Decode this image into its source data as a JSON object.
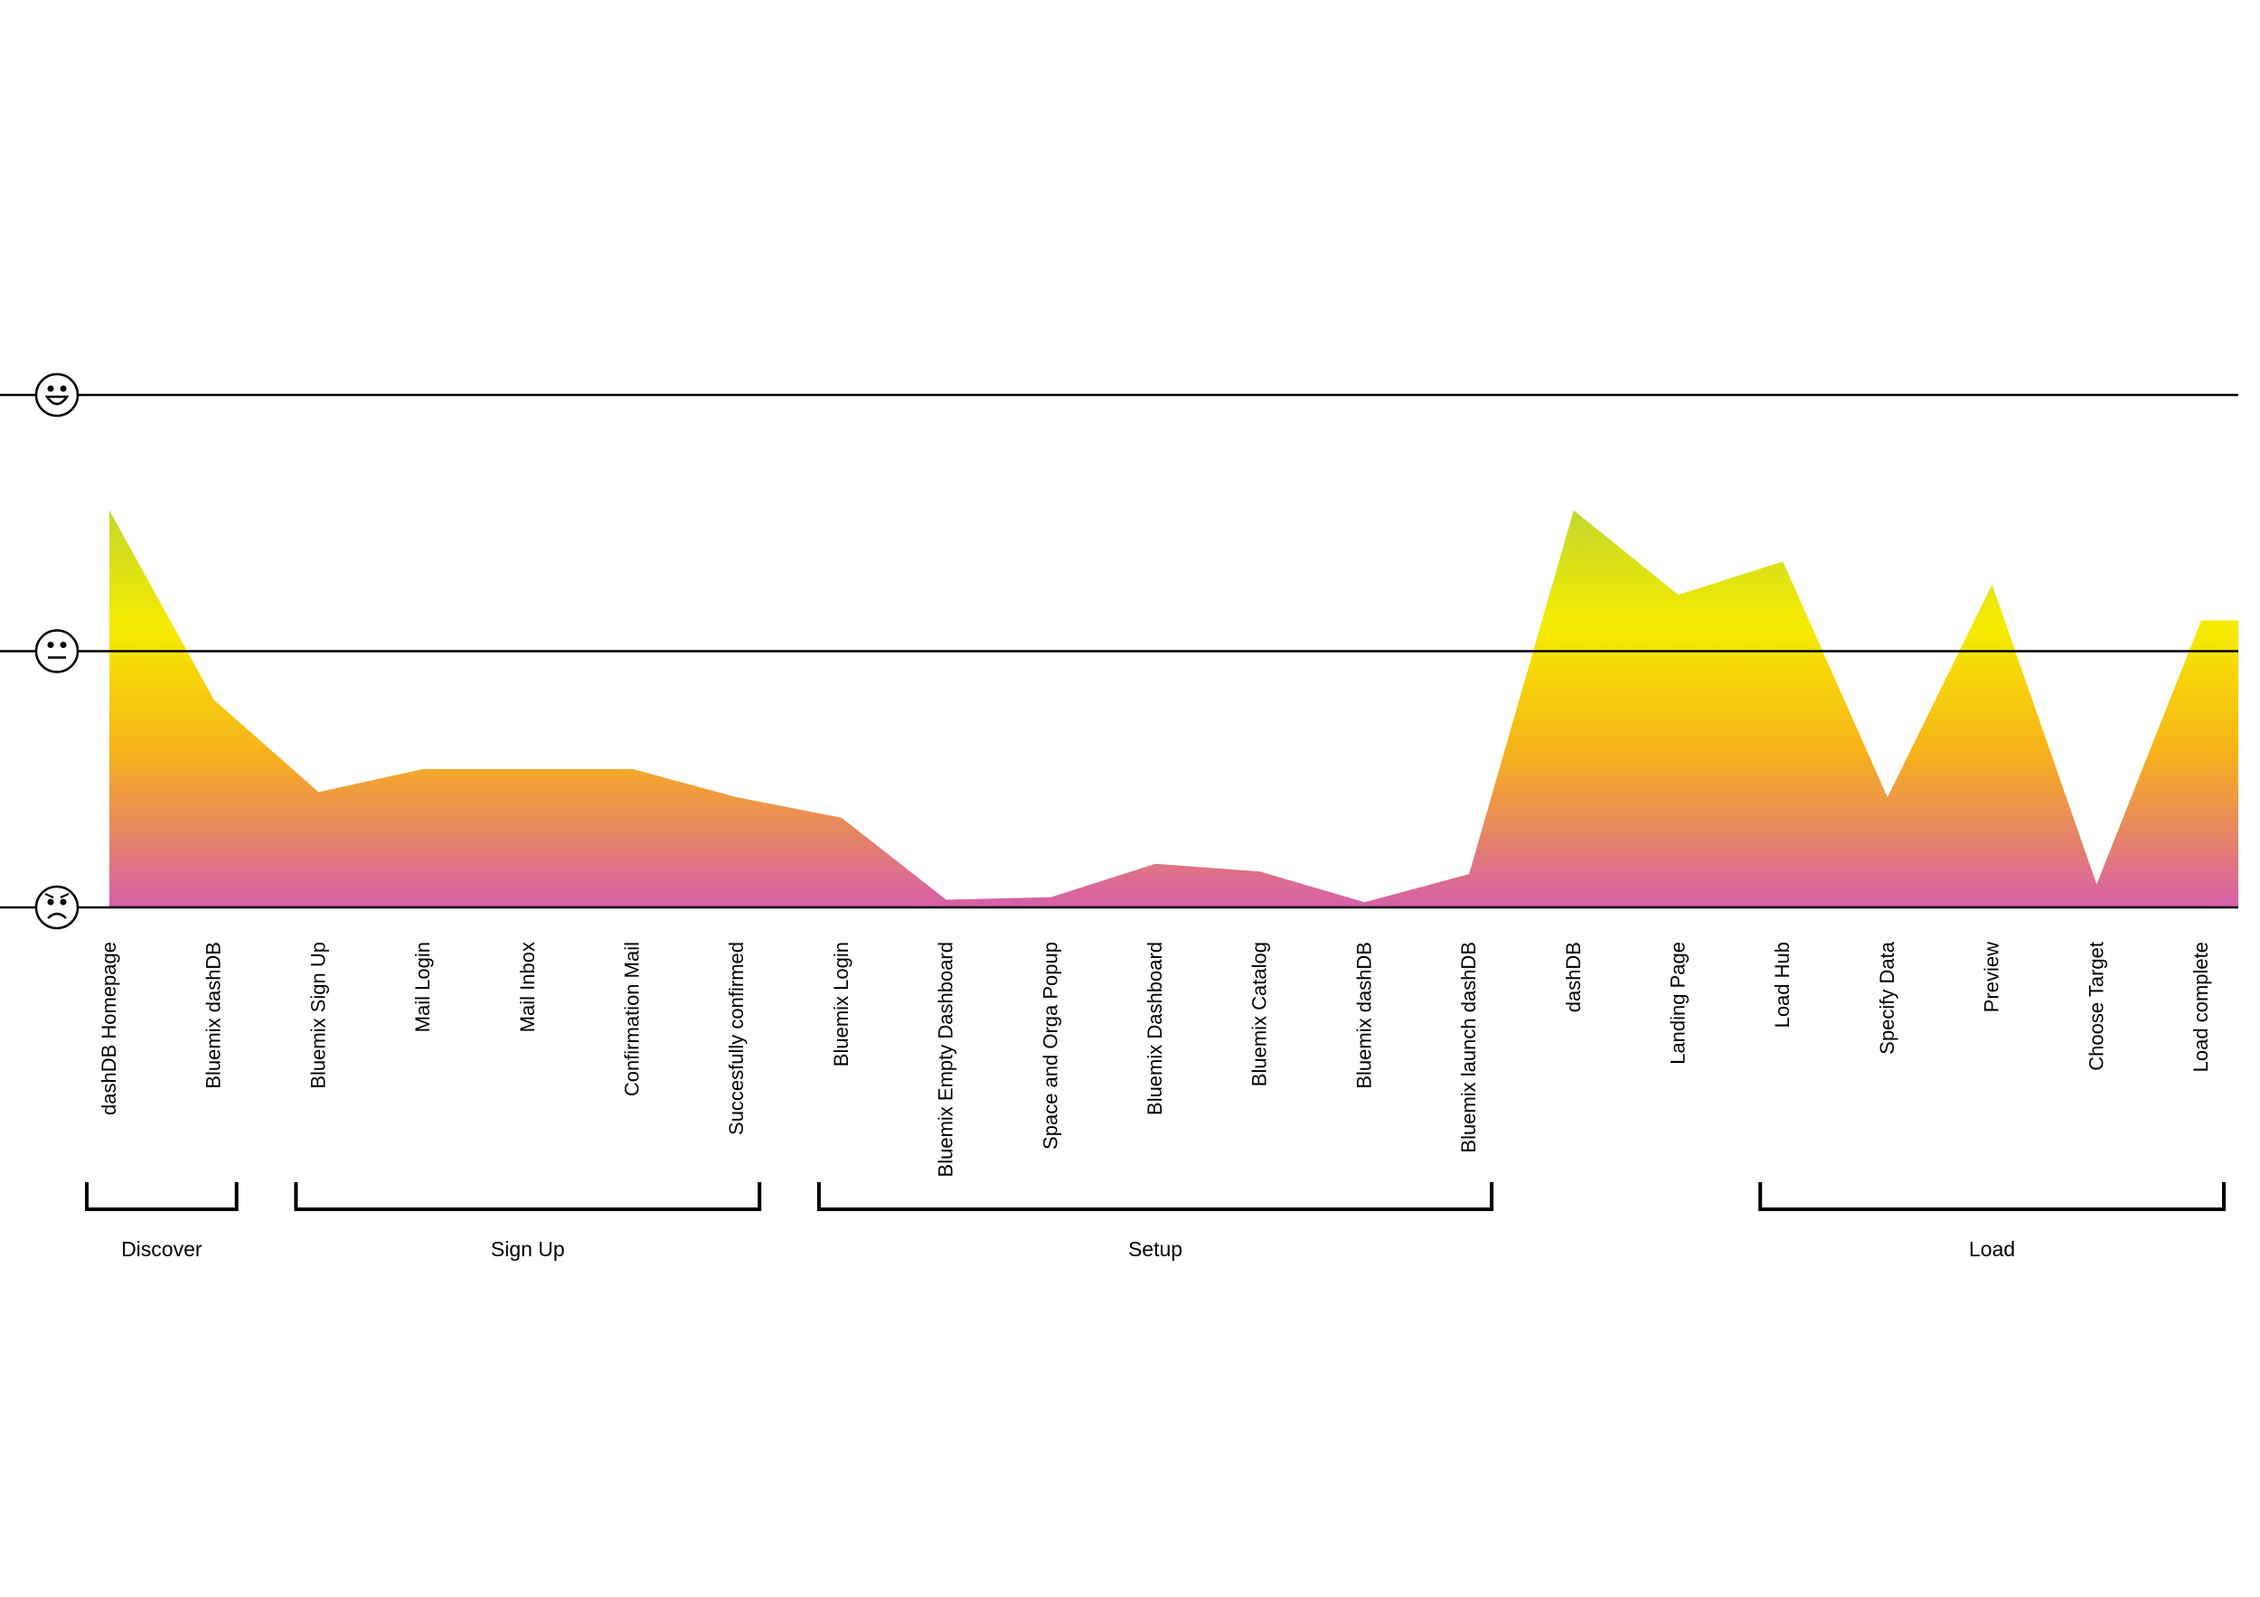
{
  "chart_data": {
    "type": "area",
    "title": "",
    "xlabel": "",
    "ylabel": "",
    "y_scale_icons": [
      "happy-face-icon",
      "neutral-face-icon",
      "sad-face-icon"
    ],
    "ylim": [
      0,
      2
    ],
    "grid": true,
    "categories": [
      "dashDB Homepage",
      "Bluemix dashDB",
      "Bluemix Sign Up",
      "Mail Login",
      "Mail Inbox",
      "Confirmation Mail",
      "Succesfully confirmed",
      "Bluemix Login",
      "Bluemix Empty Dashboard",
      "Space and Orga Popup",
      "Bluemix Dashboard",
      "Bluemix Catalog",
      "Bluemix dashDB",
      "Bluemix launch dashDB",
      "dashDB",
      "Landing Page",
      "Load Hub",
      "Specify Data",
      "Preview",
      "Choose Target",
      "Load complete"
    ],
    "values": [
      1.55,
      0.81,
      0.45,
      0.54,
      0.54,
      0.54,
      0.43,
      0.35,
      0.03,
      0.04,
      0.17,
      0.14,
      0.02,
      0.13,
      1.55,
      1.22,
      1.35,
      0.43,
      1.26,
      0.09,
      1.12
    ],
    "phases": [
      {
        "label": "Discover",
        "from": 0,
        "to": 1
      },
      {
        "label": "Sign Up",
        "from": 2,
        "to": 6
      },
      {
        "label": "Setup",
        "from": 7,
        "to": 13
      },
      {
        "label": "Load",
        "from": 16,
        "to": 20
      }
    ],
    "gradient_colors": [
      "#c2d62e",
      "#f5ec00",
      "#f7b01b",
      "#d65eab"
    ],
    "axis_color": "#000000"
  }
}
